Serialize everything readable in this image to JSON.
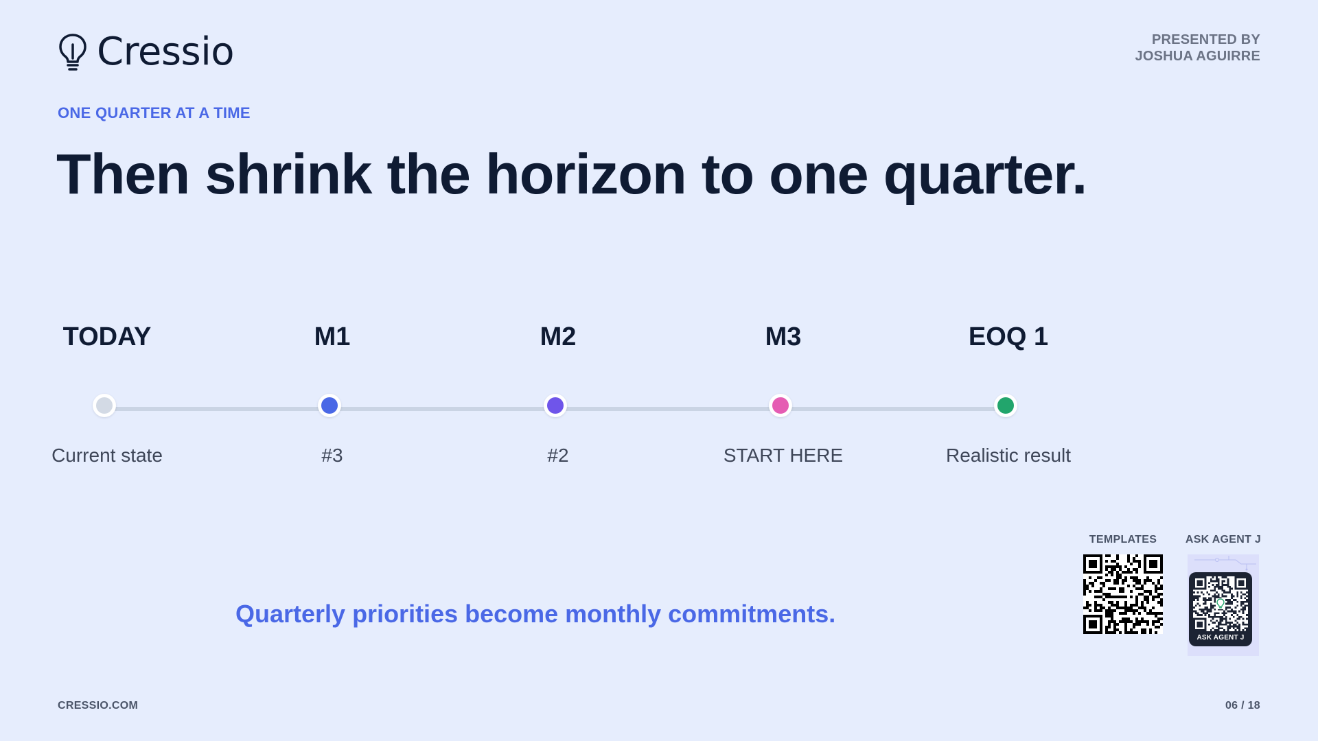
{
  "header": {
    "logo_text": "Cressio",
    "logo_icon": "lightbulb-icon",
    "presenter_line1": "PRESENTED BY",
    "presenter_line2": "JOSHUA AGUIRRE"
  },
  "slide": {
    "eyebrow": "ONE QUARTER AT A TIME",
    "title": "Then shrink the horizon to one quarter.",
    "tagline": "Quarterly priorities become monthly commitments."
  },
  "timeline": {
    "steps": [
      {
        "heading": "TODAY",
        "label": "Current state",
        "color": "#d3dae5"
      },
      {
        "heading": "M1",
        "label": "#3",
        "color": "#4a68e6"
      },
      {
        "heading": "M2",
        "label": "#2",
        "color": "#6f55ea"
      },
      {
        "heading": "M3",
        "label": "START HERE",
        "color": "#e55cb3"
      },
      {
        "heading": "EOQ 1",
        "label": "Realistic result",
        "color": "#22a56c"
      }
    ]
  },
  "qr": {
    "templates_caption": "TEMPLATES",
    "agent_caption": "ASK AGENT J",
    "agent_card_label": "ASK AGENT J"
  },
  "footer": {
    "site": "CRESSIO.COM",
    "page": "06 / 18"
  },
  "colors": {
    "background": "#e6edfd",
    "accent": "#4a68e6",
    "heading": "#0f1b33",
    "line": "#cad4e4"
  }
}
